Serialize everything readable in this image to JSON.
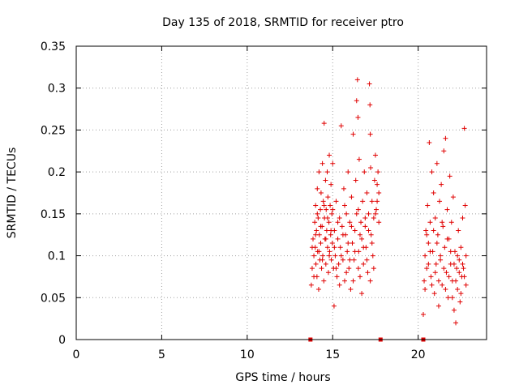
{
  "chart_data": {
    "type": "scatter",
    "title": "Day 135 of 2018, SRMTID for receiver ptro",
    "xlabel": "GPS time / hours",
    "ylabel": "SRMTID / TECUs",
    "xlim": [
      0,
      24
    ],
    "ylim": [
      0,
      0.35
    ],
    "xticks": [
      0,
      5,
      10,
      15,
      20
    ],
    "xtick_labels": [
      "0",
      "5",
      "10",
      "15",
      "20"
    ],
    "yticks": [
      0,
      0.05,
      0.1,
      0.15,
      0.2,
      0.25,
      0.3,
      0.35
    ],
    "ytick_labels": [
      "0",
      "0.05",
      "0.1",
      "0.15",
      "0.2",
      "0.25",
      "0.3",
      "0.35"
    ],
    "grid": true,
    "marker": "plus",
    "color": "#e00000",
    "baseline_marker_x": [
      13.7,
      17.8,
      20.3
    ],
    "series": [
      {
        "name": "SRMTID",
        "points": [
          [
            13.75,
            0.065
          ],
          [
            13.8,
            0.085
          ],
          [
            13.85,
            0.12
          ],
          [
            13.9,
            0.1
          ],
          [
            13.95,
            0.14
          ],
          [
            13.98,
            0.11
          ],
          [
            14.0,
            0.16
          ],
          [
            14.02,
            0.09
          ],
          [
            14.05,
            0.13
          ],
          [
            14.08,
            0.075
          ],
          [
            14.1,
            0.18
          ],
          [
            14.12,
            0.105
          ],
          [
            14.15,
            0.145
          ],
          [
            14.18,
            0.06
          ],
          [
            14.2,
            0.2
          ],
          [
            14.22,
            0.125
          ],
          [
            14.25,
            0.095
          ],
          [
            14.28,
            0.155
          ],
          [
            14.3,
            0.115
          ],
          [
            14.32,
            0.175
          ],
          [
            14.35,
            0.085
          ],
          [
            14.38,
            0.135
          ],
          [
            14.4,
            0.21
          ],
          [
            14.42,
            0.1
          ],
          [
            14.45,
            0.165
          ],
          [
            14.48,
            0.07
          ],
          [
            14.5,
            0.258
          ],
          [
            14.52,
            0.145
          ],
          [
            14.55,
            0.12
          ],
          [
            14.58,
            0.19
          ],
          [
            14.6,
            0.09
          ],
          [
            14.62,
            0.155
          ],
          [
            14.65,
            0.13
          ],
          [
            14.68,
            0.2
          ],
          [
            14.7,
            0.11
          ],
          [
            14.72,
            0.17
          ],
          [
            14.75,
            0.08
          ],
          [
            14.78,
            0.14
          ],
          [
            14.8,
            0.22
          ],
          [
            14.82,
            0.105
          ],
          [
            14.85,
            0.16
          ],
          [
            14.88,
            0.125
          ],
          [
            14.9,
            0.185
          ],
          [
            14.92,
            0.095
          ],
          [
            14.95,
            0.15
          ],
          [
            14.98,
            0.115
          ],
          [
            15.0,
            0.21
          ],
          [
            15.05,
            0.085
          ],
          [
            15.08,
            0.04
          ],
          [
            15.1,
            0.13
          ],
          [
            15.15,
            0.1
          ],
          [
            15.2,
            0.165
          ],
          [
            15.25,
            0.075
          ],
          [
            15.3,
            0.12
          ],
          [
            15.35,
            0.09
          ],
          [
            15.4,
            0.145
          ],
          [
            15.45,
            0.11
          ],
          [
            15.5,
            0.255
          ],
          [
            15.55,
            0.135
          ],
          [
            15.6,
            0.095
          ],
          [
            15.65,
            0.18
          ],
          [
            15.7,
            0.07
          ],
          [
            15.75,
            0.125
          ],
          [
            15.8,
            0.15
          ],
          [
            15.85,
            0.105
          ],
          [
            15.9,
            0.2
          ],
          [
            15.95,
            0.085
          ],
          [
            16.0,
            0.14
          ],
          [
            16.05,
            0.06
          ],
          [
            16.1,
            0.17
          ],
          [
            16.15,
            0.115
          ],
          [
            16.2,
            0.245
          ],
          [
            16.25,
            0.095
          ],
          [
            16.3,
            0.13
          ],
          [
            16.35,
            0.19
          ],
          [
            16.4,
            0.285
          ],
          [
            16.45,
            0.31
          ],
          [
            16.48,
            0.265
          ],
          [
            16.5,
            0.155
          ],
          [
            16.52,
            0.105
          ],
          [
            16.55,
            0.215
          ],
          [
            16.6,
            0.075
          ],
          [
            16.65,
            0.14
          ],
          [
            16.7,
            0.12
          ],
          [
            16.75,
            0.165
          ],
          [
            16.8,
            0.09
          ],
          [
            16.85,
            0.2
          ],
          [
            16.9,
            0.135
          ],
          [
            16.95,
            0.11
          ],
          [
            17.0,
            0.175
          ],
          [
            17.05,
            0.08
          ],
          [
            17.1,
            0.15
          ],
          [
            17.15,
            0.305
          ],
          [
            17.18,
            0.28
          ],
          [
            17.2,
            0.245
          ],
          [
            17.22,
            0.205
          ],
          [
            17.25,
            0.125
          ],
          [
            17.3,
            0.165
          ],
          [
            17.35,
            0.1
          ],
          [
            17.4,
            0.145
          ],
          [
            17.45,
            0.19
          ],
          [
            17.5,
            0.22
          ],
          [
            17.55,
            0.155
          ],
          [
            17.6,
            0.185
          ],
          [
            17.65,
            0.2
          ],
          [
            17.7,
            0.175
          ],
          [
            13.8,
            0.11
          ],
          [
            13.9,
            0.075
          ],
          [
            14.0,
            0.125
          ],
          [
            14.1,
            0.15
          ],
          [
            14.2,
            0.105
          ],
          [
            14.3,
            0.135
          ],
          [
            14.4,
            0.095
          ],
          [
            14.5,
            0.16
          ],
          [
            14.6,
            0.12
          ],
          [
            14.7,
            0.145
          ],
          [
            14.8,
            0.1
          ],
          [
            14.9,
            0.13
          ],
          [
            15.0,
            0.155
          ],
          [
            15.1,
            0.11
          ],
          [
            15.2,
            0.085
          ],
          [
            15.3,
            0.14
          ],
          [
            15.4,
            0.065
          ],
          [
            15.5,
            0.1
          ],
          [
            15.6,
            0.125
          ],
          [
            15.7,
            0.16
          ],
          [
            15.8,
            0.08
          ],
          [
            15.9,
            0.115
          ],
          [
            16.0,
            0.095
          ],
          [
            16.1,
            0.135
          ],
          [
            16.2,
            0.07
          ],
          [
            16.3,
            0.105
          ],
          [
            16.4,
            0.15
          ],
          [
            16.5,
            0.085
          ],
          [
            16.6,
            0.125
          ],
          [
            16.7,
            0.055
          ],
          [
            16.8,
            0.11
          ],
          [
            16.9,
            0.145
          ],
          [
            17.0,
            0.095
          ],
          [
            17.1,
            0.13
          ],
          [
            17.2,
            0.07
          ],
          [
            17.3,
            0.115
          ],
          [
            17.4,
            0.085
          ],
          [
            17.5,
            0.15
          ],
          [
            17.6,
            0.165
          ],
          [
            17.7,
            0.14
          ],
          [
            20.3,
            0.03
          ],
          [
            20.35,
            0.07
          ],
          [
            20.4,
            0.1
          ],
          [
            20.45,
            0.13
          ],
          [
            20.5,
            0.085
          ],
          [
            20.55,
            0.16
          ],
          [
            20.6,
            0.115
          ],
          [
            20.65,
            0.235
          ],
          [
            20.7,
            0.14
          ],
          [
            20.75,
            0.075
          ],
          [
            20.8,
            0.2
          ],
          [
            20.85,
            0.105
          ],
          [
            20.9,
            0.175
          ],
          [
            20.95,
            0.055
          ],
          [
            21.0,
            0.145
          ],
          [
            21.05,
            0.09
          ],
          [
            21.1,
            0.21
          ],
          [
            21.15,
            0.125
          ],
          [
            21.2,
            0.04
          ],
          [
            21.25,
            0.165
          ],
          [
            21.3,
            0.095
          ],
          [
            21.35,
            0.185
          ],
          [
            21.4,
            0.065
          ],
          [
            21.45,
            0.135
          ],
          [
            21.5,
            0.225
          ],
          [
            21.55,
            0.11
          ],
          [
            21.6,
            0.24
          ],
          [
            21.65,
            0.08
          ],
          [
            21.7,
            0.155
          ],
          [
            21.75,
            0.05
          ],
          [
            21.8,
            0.12
          ],
          [
            21.85,
            0.195
          ],
          [
            21.9,
            0.09
          ],
          [
            21.95,
            0.14
          ],
          [
            22.0,
            0.07
          ],
          [
            22.05,
            0.17
          ],
          [
            22.1,
            0.035
          ],
          [
            22.15,
            0.105
          ],
          [
            22.2,
            0.02
          ],
          [
            22.25,
            0.085
          ],
          [
            22.3,
            0.06
          ],
          [
            22.35,
            0.13
          ],
          [
            22.4,
            0.095
          ],
          [
            22.45,
            0.045
          ],
          [
            22.5,
            0.11
          ],
          [
            22.55,
            0.075
          ],
          [
            22.6,
            0.145
          ],
          [
            22.65,
            0.085
          ],
          [
            22.7,
            0.252
          ],
          [
            22.75,
            0.16
          ],
          [
            22.8,
            0.065
          ],
          [
            20.4,
            0.06
          ],
          [
            20.5,
            0.125
          ],
          [
            20.6,
            0.09
          ],
          [
            20.7,
            0.105
          ],
          [
            20.8,
            0.065
          ],
          [
            20.9,
            0.13
          ],
          [
            21.0,
            0.08
          ],
          [
            21.1,
            0.115
          ],
          [
            21.2,
            0.07
          ],
          [
            21.3,
            0.1
          ],
          [
            21.4,
            0.14
          ],
          [
            21.5,
            0.085
          ],
          [
            21.6,
            0.06
          ],
          [
            21.7,
            0.12
          ],
          [
            21.8,
            0.075
          ],
          [
            21.9,
            0.105
          ],
          [
            22.0,
            0.05
          ],
          [
            22.1,
            0.09
          ],
          [
            22.2,
            0.07
          ],
          [
            22.3,
            0.1
          ],
          [
            22.4,
            0.08
          ],
          [
            22.5,
            0.055
          ],
          [
            22.6,
            0.09
          ],
          [
            22.7,
            0.075
          ],
          [
            22.8,
            0.1
          ]
        ]
      }
    ]
  }
}
